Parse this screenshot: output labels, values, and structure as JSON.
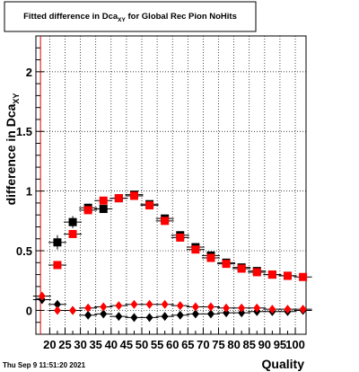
{
  "title": "Fitted difference in Dca",
  "title_sub": "XY",
  "title_tail": " for Global Rec Pion NoHits",
  "footer_date": "Thu Sep  9 11:51:20 2021",
  "chart_data": {
    "type": "scatter",
    "title": "Fitted difference in Dca_XY for Global Rec Pion NoHits",
    "xlabel": "Quality",
    "ylabel": "difference in Dca",
    "ylabel_sub": "XY",
    "xlim": [
      15.5,
      103.5
    ],
    "ylim": [
      -0.2,
      2.3
    ],
    "xticks": [
      20,
      25,
      30,
      35,
      40,
      45,
      50,
      55,
      60,
      65,
      70,
      75,
      80,
      85,
      90,
      95,
      100
    ],
    "yticks": [
      0,
      0.5,
      1,
      1.5,
      2
    ],
    "ytick_labels": [
      "0",
      "0.5",
      "1",
      "1.5",
      "2"
    ],
    "grid": true,
    "reference_line_x": 17,
    "series": [
      {
        "marker": "square",
        "color": "#000000",
        "x": [
          22.5,
          27.5,
          32.5,
          37.5,
          42.5,
          47.5,
          52.5,
          57.5,
          62.5,
          67.5,
          72.5,
          77.5,
          82.5,
          87.5,
          92.5,
          97.5
        ],
        "y": [
          0.57,
          0.74,
          0.86,
          0.85,
          0.94,
          0.97,
          0.89,
          0.77,
          0.63,
          0.53,
          0.46,
          0.4,
          0.36,
          0.33,
          0.3,
          0.29
        ],
        "yerr": [
          0.06,
          0.05,
          0.03,
          0.02,
          0.02,
          0.02,
          0.02,
          0.02,
          0.02,
          0.02,
          0.02,
          0.01,
          0.01,
          0.01,
          0.01,
          0.01
        ]
      },
      {
        "marker": "square",
        "color": "#ff0000",
        "x": [
          22.5,
          27.5,
          32.5,
          37.5,
          42.5,
          47.5,
          52.5,
          57.5,
          62.5,
          67.5,
          72.5,
          77.5,
          82.5,
          87.5,
          92.5,
          97.5,
          102.5
        ],
        "y": [
          0.38,
          0.64,
          0.84,
          0.92,
          0.94,
          0.96,
          0.88,
          0.75,
          0.61,
          0.51,
          0.44,
          0.39,
          0.35,
          0.32,
          0.3,
          0.29,
          0.28
        ],
        "yerr": [
          0.02,
          0.03,
          0.02,
          0.02,
          0.02,
          0.02,
          0.02,
          0.02,
          0.02,
          0.01,
          0.01,
          0.01,
          0.01,
          0.01,
          0.01,
          0.01,
          0.01
        ]
      },
      {
        "marker": "diamond",
        "color": "#000000",
        "x": [
          17.5,
          22.5,
          27.5,
          32.5,
          37.5,
          42.5,
          47.5,
          52.5,
          57.5,
          62.5,
          67.5,
          72.5,
          77.5,
          82.5,
          87.5,
          92.5,
          97.5,
          102.5
        ],
        "y": [
          0.09,
          0.05,
          0.0,
          -0.04,
          -0.03,
          -0.05,
          -0.06,
          -0.06,
          -0.05,
          -0.04,
          -0.03,
          -0.03,
          -0.02,
          -0.02,
          -0.01,
          -0.01,
          -0.01,
          0.0
        ]
      },
      {
        "marker": "diamond",
        "color": "#ff0000",
        "x": [
          17.5,
          22.5,
          27.5,
          32.5,
          37.5,
          42.5,
          47.5,
          52.5,
          57.5,
          62.5,
          67.5,
          72.5,
          77.5,
          82.5,
          87.5,
          92.5,
          97.5,
          102.5
        ],
        "y": [
          0.12,
          0.0,
          0.0,
          0.02,
          0.03,
          0.04,
          0.05,
          0.05,
          0.05,
          0.04,
          0.03,
          0.03,
          0.02,
          0.02,
          0.02,
          0.01,
          0.01,
          0.01
        ]
      }
    ]
  }
}
